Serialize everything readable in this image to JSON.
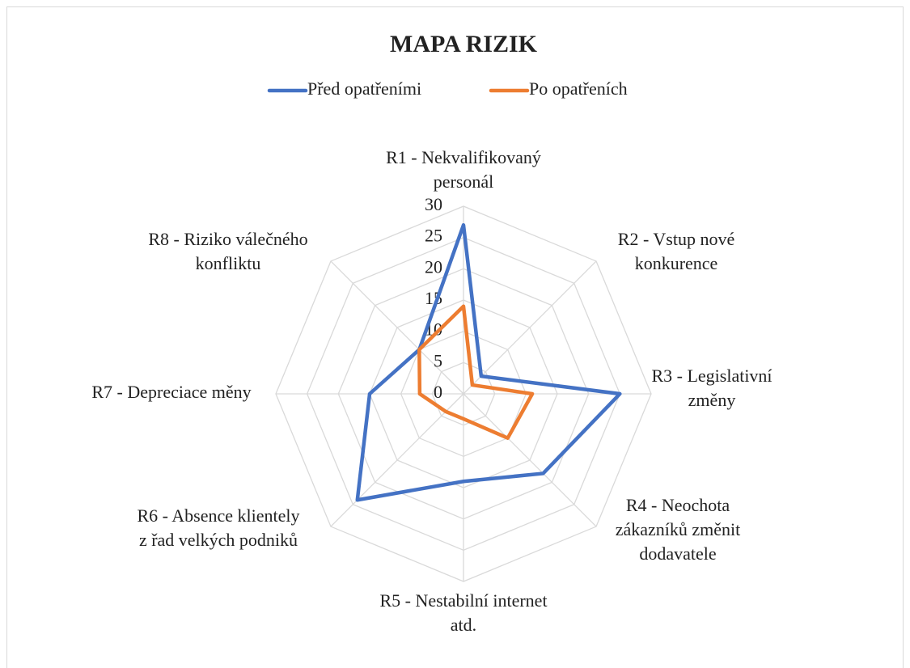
{
  "chart_data": {
    "type": "radar",
    "title": "MAPA RIZIK",
    "categories": [
      [
        "R1 - Nekvalifikovaný",
        "personál"
      ],
      [
        "R2 - Vstup nové",
        "konkurence"
      ],
      [
        "R3 - Legislativní",
        "změny"
      ],
      [
        "R4 - Neochota",
        "zákazníků změnit",
        "dodavatele"
      ],
      [
        "R5 - Nestabilní internet",
        "atd."
      ],
      [
        "R6 - Absence klientely",
        "z řad velkých podniků"
      ],
      [
        "R7 - Depreciace měny"
      ],
      [
        "R8 - Riziko válečného",
        "konfliktu"
      ]
    ],
    "series": [
      {
        "name": "Před opatřeními",
        "color": "#4472c4",
        "values": [
          27,
          4,
          25,
          18,
          14,
          24,
          15,
          10
        ]
      },
      {
        "name": "Po opatřeních",
        "color": "#ed7d31",
        "values": [
          14,
          2,
          11,
          10,
          4,
          4,
          7,
          10
        ]
      }
    ],
    "ylim": [
      0,
      30
    ],
    "yticks": [
      0,
      5,
      10,
      15,
      20,
      25,
      30
    ],
    "grid": true,
    "legend": "top"
  }
}
